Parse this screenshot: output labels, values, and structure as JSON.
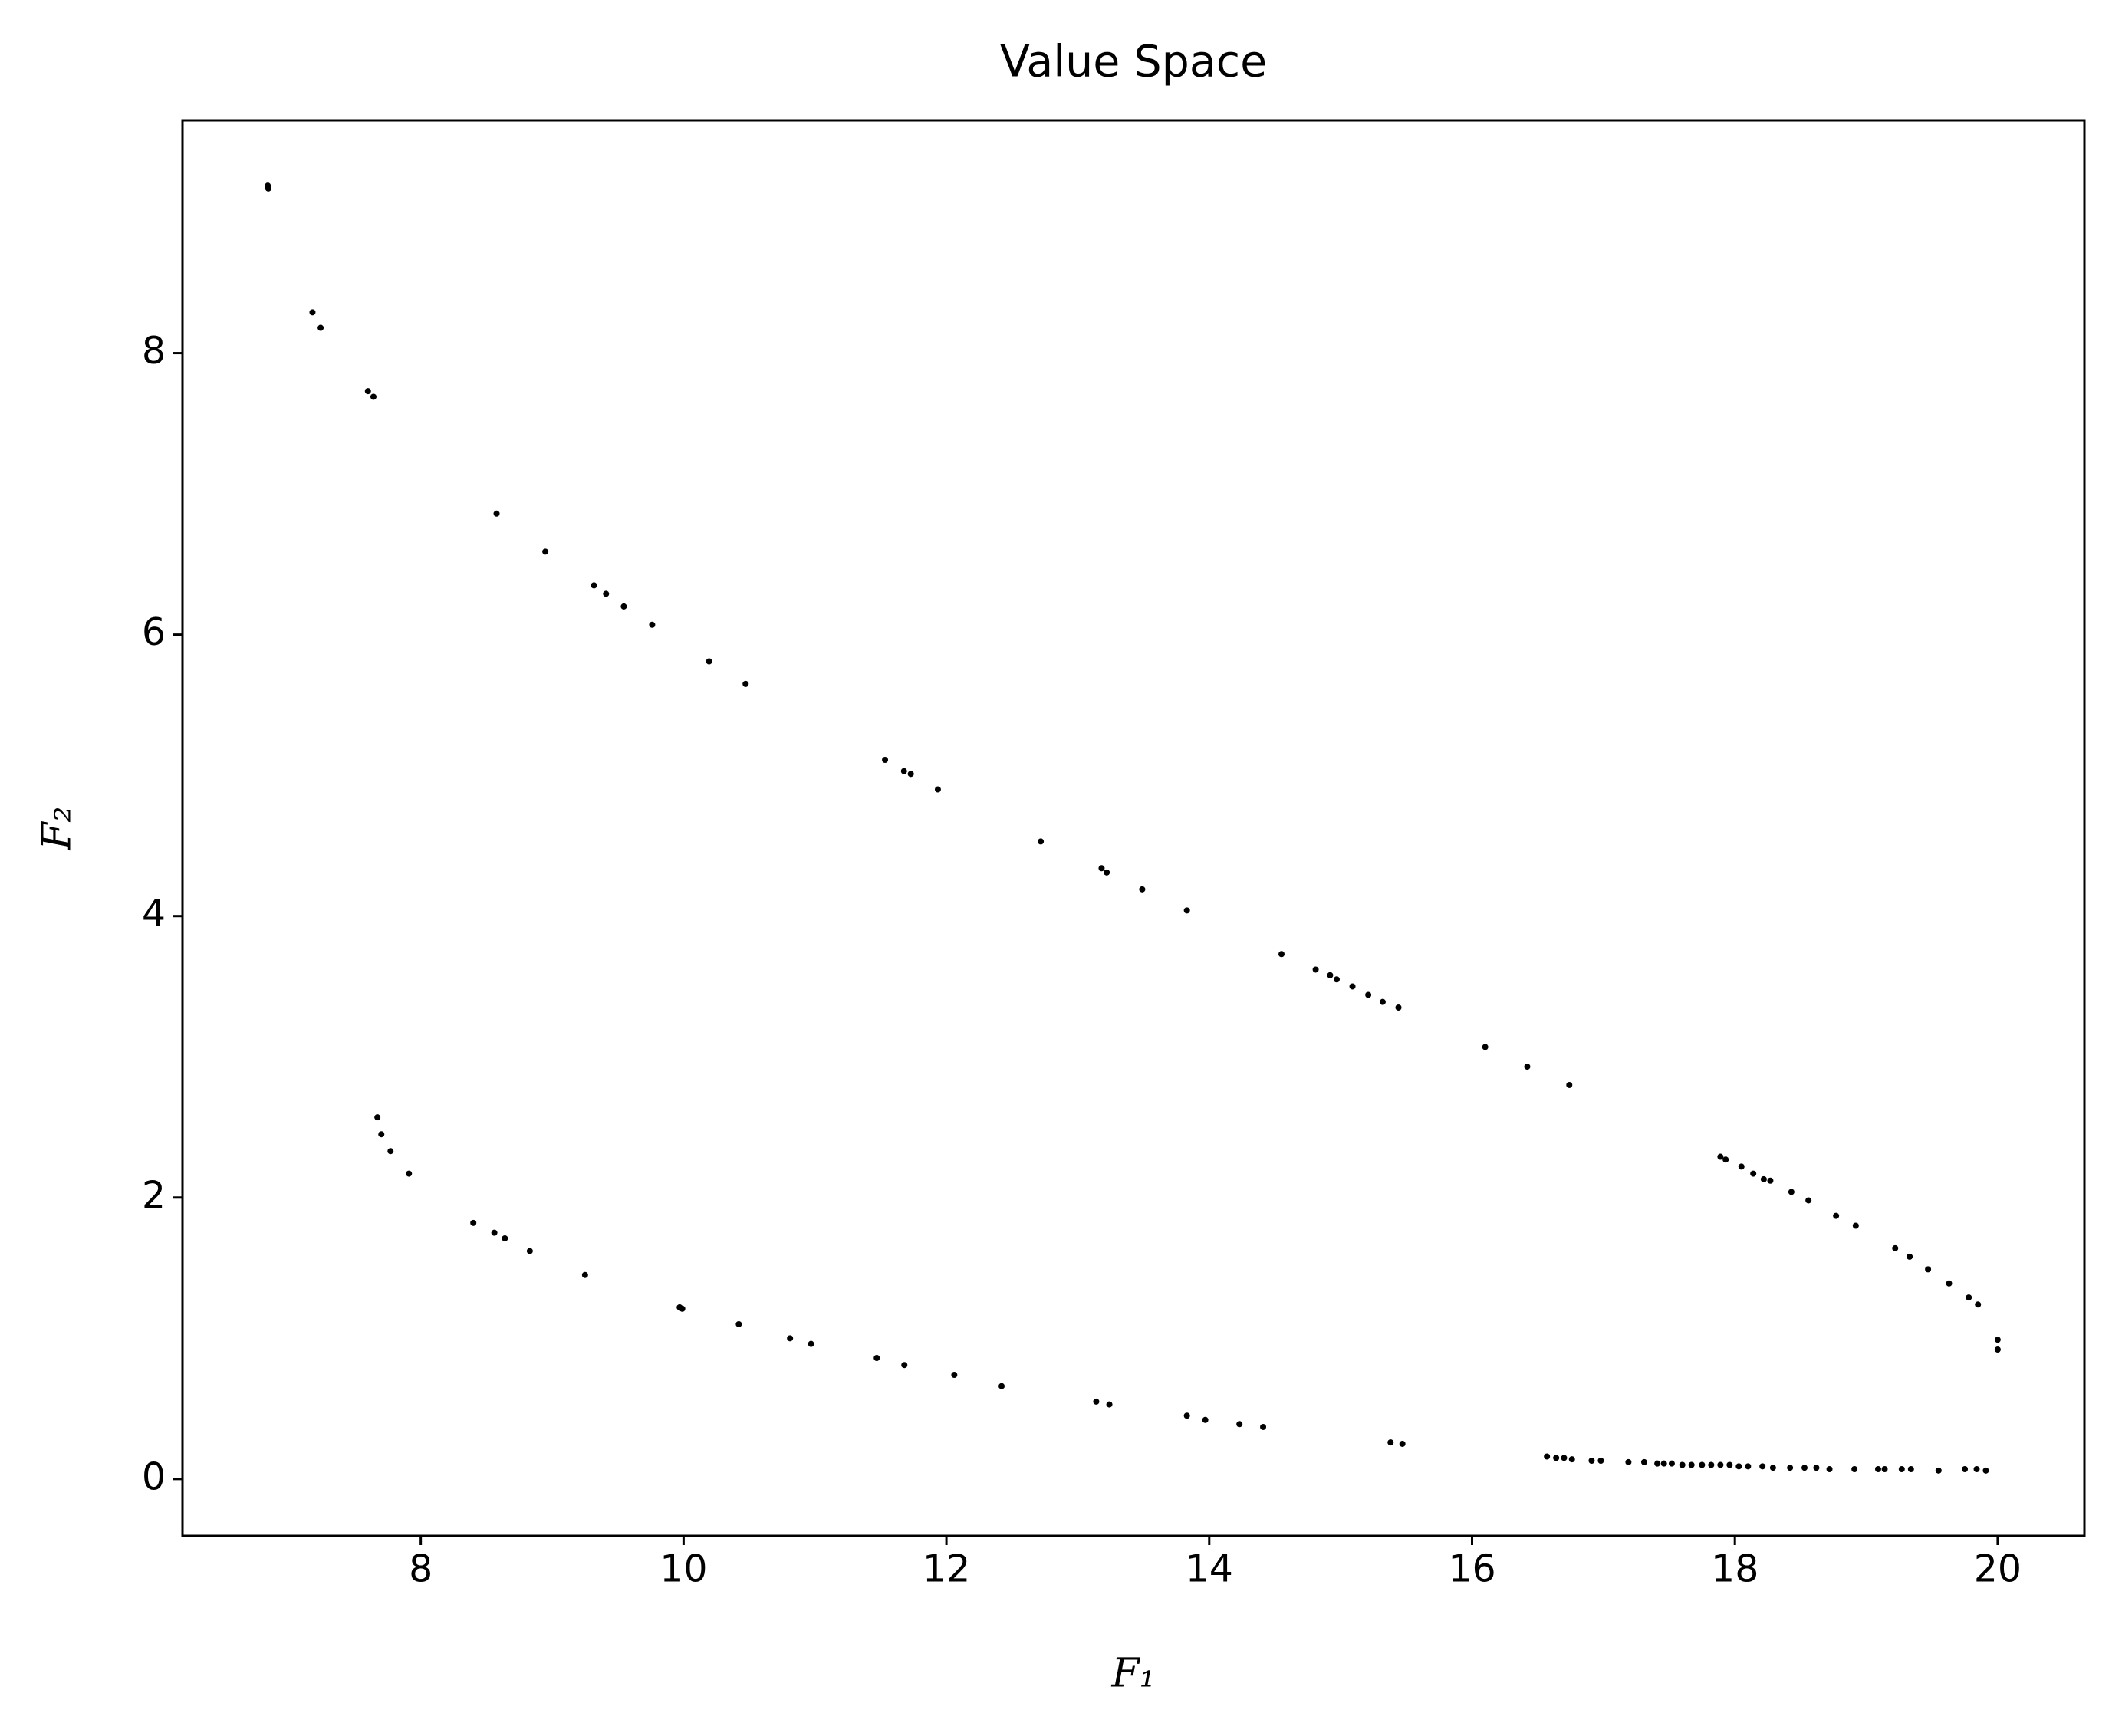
{
  "chart_data": {
    "type": "scatter",
    "title": "Value Space",
    "x_label": "F₁",
    "y_label": "F₂",
    "x": [
      6.836,
      6.84,
      7.176,
      7.238,
      7.598,
      7.64,
      8.577,
      8.948,
      9.318,
      9.41,
      9.545,
      9.761,
      10.194,
      10.472,
      11.533,
      11.677,
      11.729,
      11.935,
      12.718,
      13.181,
      13.22,
      13.49,
      13.83,
      14.55,
      14.81,
      14.92,
      14.97,
      15.09,
      15.21,
      15.32,
      15.44,
      16.1,
      16.42,
      16.74,
      17.89,
      17.93,
      18.05,
      18.14,
      18.22,
      18.27,
      18.43,
      18.56,
      18.77,
      18.92,
      19.22,
      19.33,
      19.47,
      19.63,
      19.78,
      19.85,
      20.0,
      20.0,
      7.67,
      7.7,
      7.77,
      7.91,
      8.4,
      8.56,
      8.64,
      8.83,
      9.25,
      9.97,
      9.99,
      10.42,
      10.81,
      10.97,
      11.47,
      11.68,
      12.06,
      12.42,
      13.14,
      13.24,
      13.83,
      13.97,
      14.23,
      14.41,
      15.38,
      15.47,
      16.57,
      16.64,
      16.7,
      16.76,
      16.91,
      16.98,
      17.19,
      17.31,
      17.41,
      17.46,
      17.52,
      17.6,
      17.67,
      17.75,
      17.82,
      17.89,
      17.96,
      18.03,
      18.1,
      18.21,
      18.29,
      18.42,
      18.53,
      18.62,
      18.72,
      18.91,
      19.09,
      19.14,
      19.27,
      19.34,
      19.55,
      19.75,
      19.84,
      19.91
    ],
    "y": [
      9.19,
      9.17,
      8.29,
      8.18,
      7.73,
      7.69,
      6.86,
      6.59,
      6.35,
      6.29,
      6.2,
      6.07,
      5.81,
      5.65,
      5.11,
      5.03,
      5.01,
      4.9,
      4.53,
      4.34,
      4.31,
      4.19,
      4.04,
      3.73,
      3.62,
      3.58,
      3.55,
      3.5,
      3.44,
      3.39,
      3.35,
      3.07,
      2.93,
      2.8,
      2.29,
      2.27,
      2.22,
      2.17,
      2.13,
      2.12,
      2.04,
      1.98,
      1.87,
      1.8,
      1.64,
      1.58,
      1.49,
      1.39,
      1.29,
      1.24,
      0.99,
      0.92,
      2.57,
      2.45,
      2.33,
      2.17,
      1.82,
      1.75,
      1.71,
      1.62,
      1.45,
      1.22,
      1.21,
      1.1,
      1.0,
      0.96,
      0.86,
      0.81,
      0.74,
      0.66,
      0.55,
      0.53,
      0.45,
      0.42,
      0.39,
      0.37,
      0.26,
      0.25,
      0.16,
      0.15,
      0.15,
      0.14,
      0.13,
      0.13,
      0.12,
      0.12,
      0.11,
      0.11,
      0.11,
      0.1,
      0.1,
      0.1,
      0.1,
      0.1,
      0.1,
      0.09,
      0.09,
      0.09,
      0.08,
      0.08,
      0.08,
      0.08,
      0.07,
      0.07,
      0.07,
      0.07,
      0.07,
      0.07,
      0.06,
      0.07,
      0.07,
      0.06
    ],
    "color": "#000000",
    "xlim": [
      6.187,
      20.66
    ],
    "ylim": [
      -0.404,
      9.654
    ],
    "xticks": [
      8,
      10,
      12,
      14,
      16,
      18,
      20
    ],
    "yticks": [
      0,
      2,
      4,
      6,
      8
    ]
  }
}
